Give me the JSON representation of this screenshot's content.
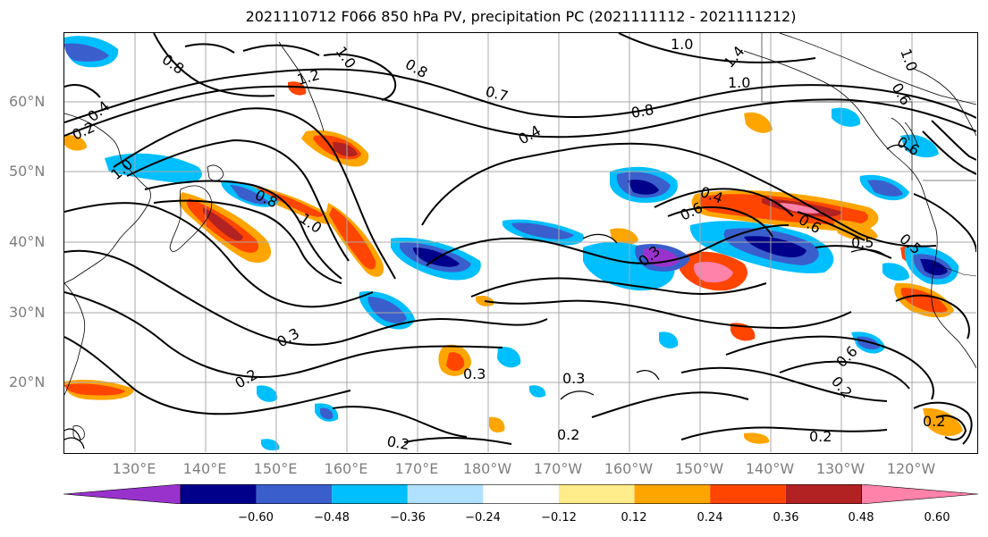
{
  "title": "2021110712 F066 850 hPa PV, precipitation PC (2021111112 - 2021111212)",
  "lat_labels": [
    "60°N",
    "50°N",
    "40°N",
    "30°N",
    "20°N"
  ],
  "lon_labels": [
    "130°E",
    "140°E",
    "150°E",
    "160°E",
    "170°E",
    "180°W",
    "170°W",
    "160°W",
    "150°W",
    "140°W",
    "130°W",
    "120°W"
  ],
  "colorbar": {
    "colors": [
      "#9932cc",
      "#00008b",
      "#3a5fcd",
      "#00bfff",
      "#b0e2ff",
      "#ffffff",
      "#ffec8b",
      "#ffa500",
      "#ff4500",
      "#b22222",
      "#ff82ab"
    ],
    "ticks": [
      "−0.60",
      "−0.48",
      "−0.36",
      "−0.24",
      "−0.12",
      "0.12",
      "0.24",
      "0.36",
      "0.48",
      "0.60"
    ]
  },
  "contour_labels": [
    "0.8",
    "1.2",
    "1.0",
    "0.8",
    "1.0",
    "1.4",
    "1.0",
    "0.7",
    "0.4",
    "0.2",
    "0.4",
    "1.0",
    "0.8",
    "0.8",
    "1.0",
    "0.4",
    "0.6",
    "0.6",
    "0.5",
    "0.3",
    "0.3",
    "0.2",
    "0.3",
    "0.3",
    "0.2",
    "0.2",
    "0.2",
    "0.2",
    "0.2",
    "0.6",
    "0.6",
    "1.0",
    "0.6",
    "0.5"
  ]
}
